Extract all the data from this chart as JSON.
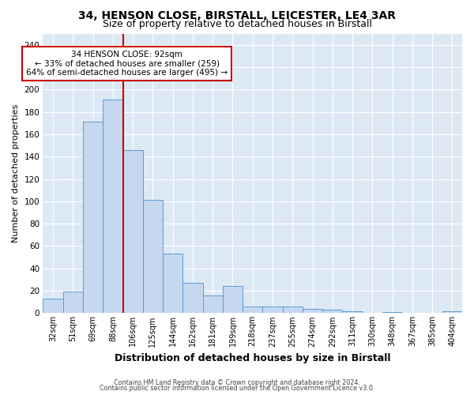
{
  "title1": "34, HENSON CLOSE, BIRSTALL, LEICESTER, LE4 3AR",
  "title2": "Size of property relative to detached houses in Birstall",
  "xlabel": "Distribution of detached houses by size in Birstall",
  "ylabel": "Number of detached properties",
  "categories": [
    "32sqm",
    "51sqm",
    "69sqm",
    "88sqm",
    "106sqm",
    "125sqm",
    "144sqm",
    "162sqm",
    "181sqm",
    "199sqm",
    "218sqm",
    "237sqm",
    "255sqm",
    "274sqm",
    "292sqm",
    "311sqm",
    "330sqm",
    "348sqm",
    "367sqm",
    "385sqm",
    "404sqm"
  ],
  "values": [
    13,
    19,
    171,
    191,
    146,
    101,
    53,
    27,
    16,
    24,
    6,
    6,
    6,
    4,
    3,
    2,
    0,
    1,
    0,
    0,
    2
  ],
  "bar_color": "#c5d8f0",
  "bar_edge_color": "#5b9bd5",
  "vline_color": "#cc0000",
  "vline_x_index": 3,
  "ylim": [
    0,
    250
  ],
  "yticks": [
    0,
    20,
    40,
    60,
    80,
    100,
    120,
    140,
    160,
    180,
    200,
    220,
    240
  ],
  "annotation_text": "34 HENSON CLOSE: 92sqm\n← 33% of detached houses are smaller (259)\n64% of semi-detached houses are larger (495) →",
  "annotation_box_facecolor": "#ffffff",
  "annotation_box_edgecolor": "#cc0000",
  "footer1": "Contains HM Land Registry data © Crown copyright and database right 2024.",
  "footer2": "Contains public sector information licensed under the Open Government Licence v3.0.",
  "fig_bg_color": "#ffffff",
  "plot_bg_color": "#dce9f5",
  "grid_color": "#ffffff",
  "title1_fontsize": 10,
  "title2_fontsize": 9,
  "xlabel_fontsize": 9,
  "ylabel_fontsize": 8
}
